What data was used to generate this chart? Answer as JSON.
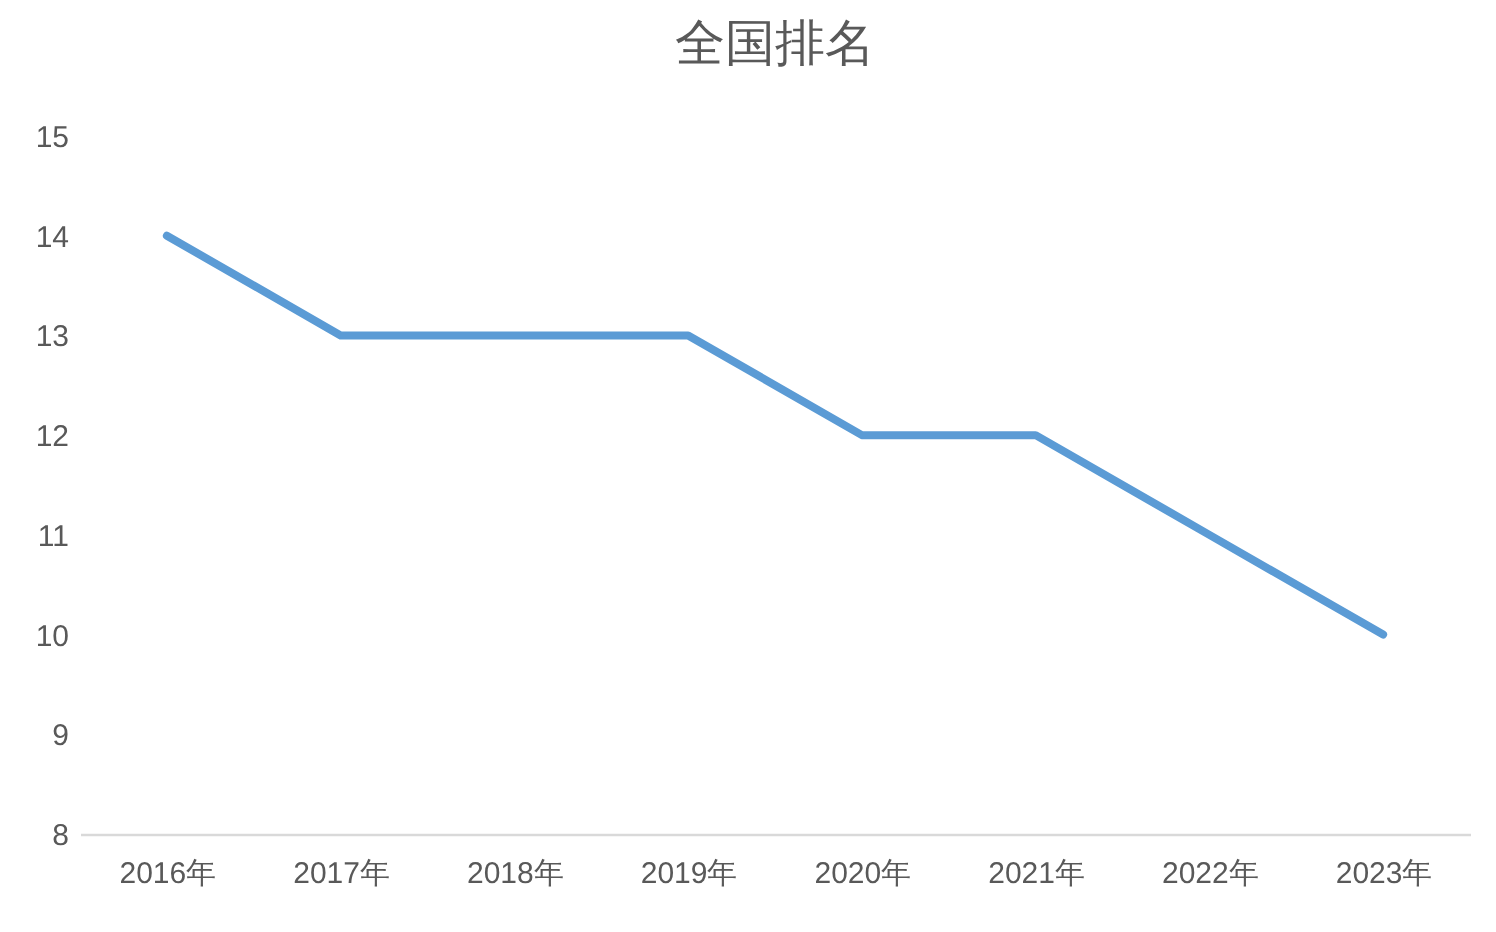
{
  "chart_data": {
    "type": "line",
    "title": "全国排名",
    "categories": [
      "2016年",
      "2017年",
      "2018年",
      "2019年",
      "2020年",
      "2021年",
      "2022年",
      "2023年"
    ],
    "series": [
      {
        "color": "#5b9bd5",
        "values": [
          14,
          13,
          13,
          13,
          12,
          12,
          11,
          10
        ]
      }
    ],
    "ylim": [
      8,
      15
    ],
    "yticks": [
      8,
      9,
      10,
      11,
      12,
      13,
      14,
      15
    ],
    "marker": "none",
    "line_style": "solid"
  }
}
